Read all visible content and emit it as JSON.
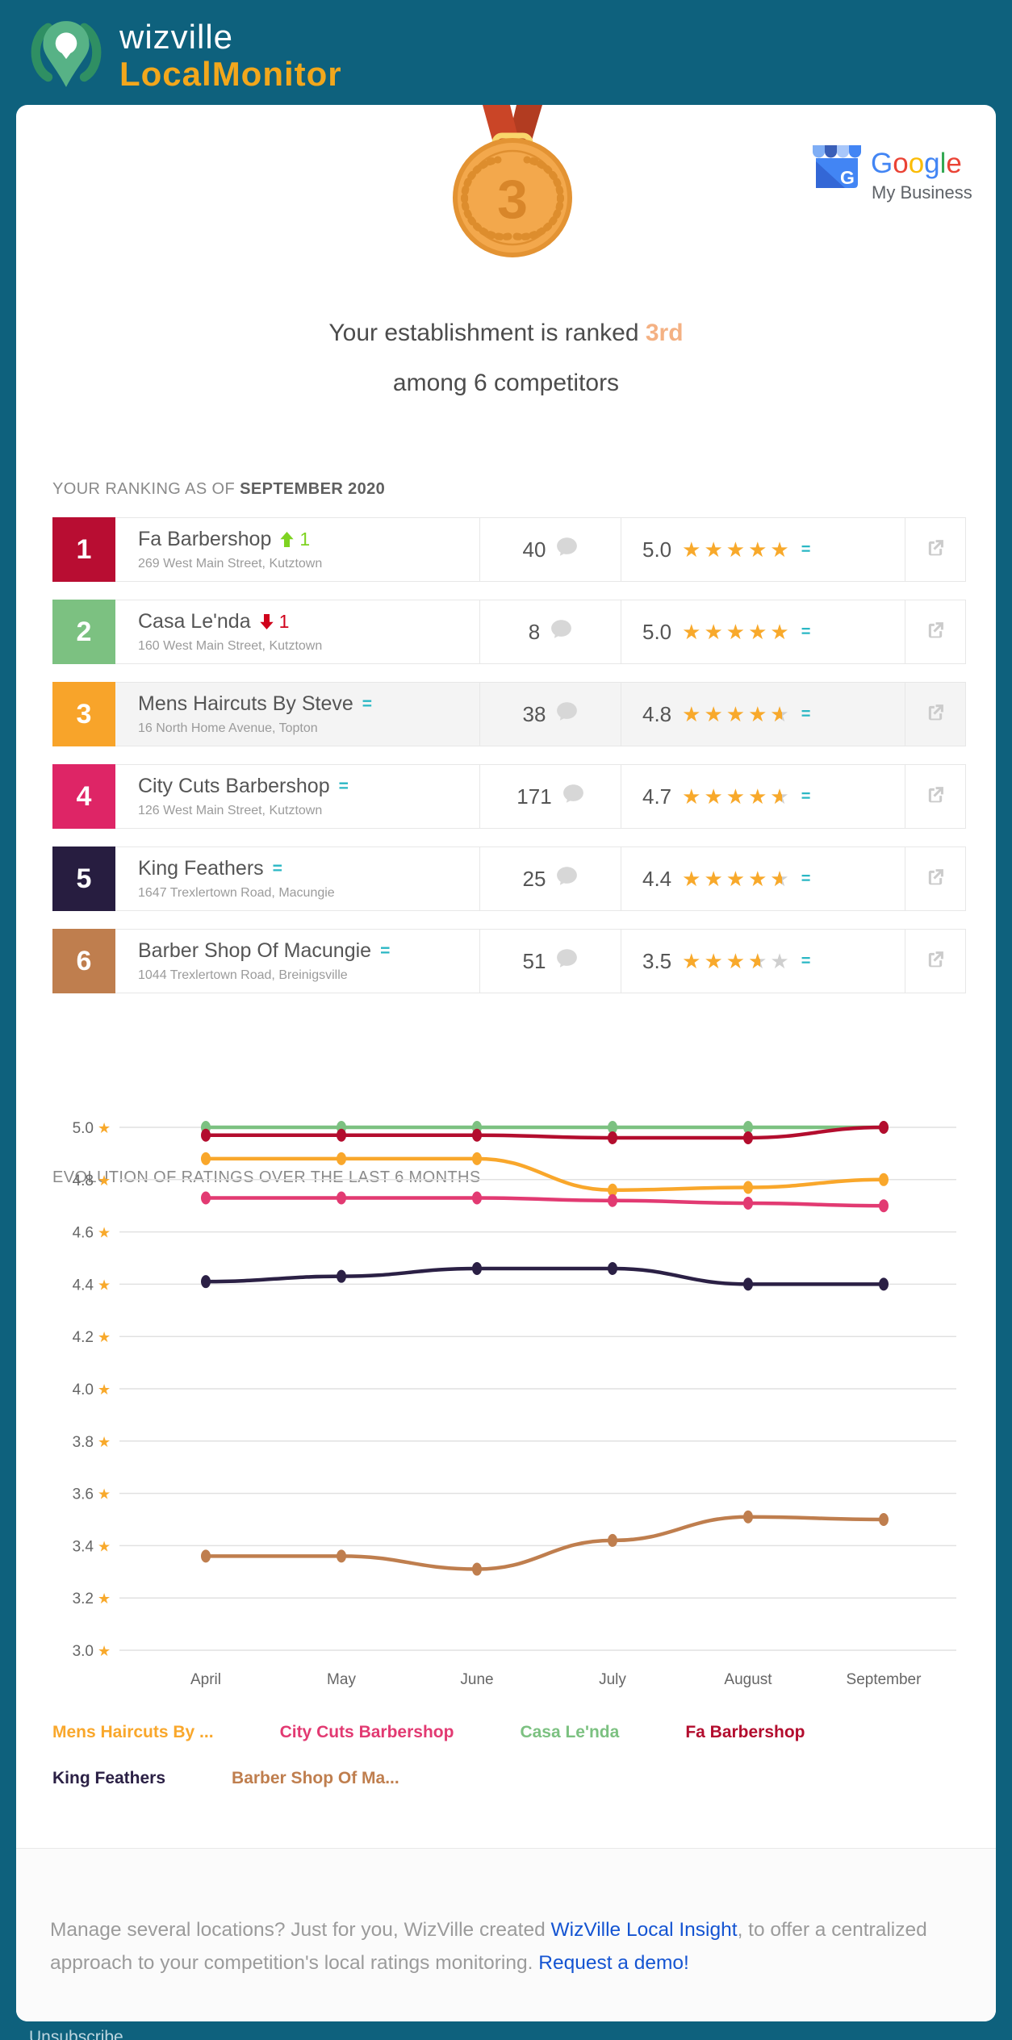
{
  "header": {
    "brand_line1": "wizville",
    "brand_line2": "LocalMonitor"
  },
  "google": {
    "name": "Google",
    "letters": [
      [
        "G",
        "#4285F4"
      ],
      [
        "o",
        "#EA4335"
      ],
      [
        "o",
        "#FBBC05"
      ],
      [
        "g",
        "#4285F4"
      ],
      [
        "l",
        "#34A853"
      ],
      [
        "e",
        "#EA4335"
      ]
    ],
    "subtitle": "My Business"
  },
  "hero": {
    "medal_number": "3",
    "headline_prefix": "Your establishment is ranked ",
    "headline_rank": "3rd",
    "headline_line2": "among 6 competitors"
  },
  "ranking": {
    "title_prefix": "YOUR RANKING AS OF ",
    "title_period": "SEPTEMBER 2020",
    "rows": [
      {
        "rank": "1",
        "badge_color": "#b80d32",
        "name": "Fa Barbershop",
        "trend": "up",
        "trend_value": "1",
        "address": "269 West Main Street, Kutztown",
        "reviews": "40",
        "rating": "5.0",
        "stars_display": 5,
        "highlighted": false
      },
      {
        "rank": "2",
        "badge_color": "#7cc181",
        "name": "Casa Le'nda",
        "trend": "down",
        "trend_value": "1",
        "address": "160 West Main Street, Kutztown",
        "reviews": "8",
        "rating": "5.0",
        "stars_display": 5,
        "highlighted": false
      },
      {
        "rank": "3",
        "badge_color": "#f8a42a",
        "name": "Mens Haircuts By Steve",
        "trend": "same",
        "trend_value": "",
        "address": "16 North Home Avenue, Topton",
        "reviews": "38",
        "rating": "4.8",
        "stars_display": 4.5,
        "highlighted": true
      },
      {
        "rank": "4",
        "badge_color": "#de2566",
        "name": "City Cuts Barbershop",
        "trend": "same",
        "trend_value": "",
        "address": "126 West Main Street, Kutztown",
        "reviews": "171",
        "rating": "4.7",
        "stars_display": 4.5,
        "highlighted": false
      },
      {
        "rank": "5",
        "badge_color": "#271d40",
        "name": "King Feathers",
        "trend": "same",
        "trend_value": "",
        "address": "1647 Trexlertown Road, Macungie",
        "reviews": "25",
        "rating": "4.4",
        "stars_display": 4.5,
        "highlighted": false
      },
      {
        "rank": "6",
        "badge_color": "#bf7e4e",
        "name": "Barber Shop Of Macungie",
        "trend": "same",
        "trend_value": "",
        "address": "1044 Trexlertown Road, Breinigsville",
        "reviews": "51",
        "rating": "3.5",
        "stars_display": 3.5,
        "highlighted": false
      }
    ]
  },
  "chart": {
    "title": "EVOLUTION OF RATINGS OVER THE LAST 6 MONTHS"
  },
  "chart_data": {
    "type": "line",
    "x": [
      "April",
      "May",
      "June",
      "July",
      "August",
      "September"
    ],
    "ylim": [
      3.0,
      5.0
    ],
    "ytick_step": 0.2,
    "yticks": [
      "5.0",
      "4.8",
      "4.6",
      "4.4",
      "4.2",
      "4.0",
      "3.8",
      "3.6",
      "3.4",
      "3.2",
      "3.0"
    ],
    "grid": true,
    "series": [
      {
        "name": "Casa Le'nda",
        "color": "#7cc181",
        "values": [
          5.0,
          5.0,
          5.0,
          5.0,
          5.0,
          5.0
        ]
      },
      {
        "name": "Fa Barbershop",
        "color": "#b30d2e",
        "values": [
          4.97,
          4.97,
          4.97,
          4.96,
          4.96,
          5.0
        ]
      },
      {
        "name": "Mens Haircuts By ...",
        "color": "#f9a72b",
        "values": [
          4.88,
          4.88,
          4.88,
          4.76,
          4.77,
          4.8
        ]
      },
      {
        "name": "City Cuts Barbershop",
        "color": "#e23a72",
        "values": [
          4.73,
          4.73,
          4.73,
          4.72,
          4.71,
          4.7
        ]
      },
      {
        "name": "King Feathers",
        "color": "#2b2045",
        "values": [
          4.41,
          4.43,
          4.46,
          4.46,
          4.4,
          4.4
        ]
      },
      {
        "name": "Barber Shop Of Ma...",
        "color": "#bf7e4e",
        "values": [
          3.36,
          3.36,
          3.31,
          3.42,
          3.51,
          3.5
        ]
      }
    ],
    "legend_position": "bottom",
    "legend_rows": [
      [
        {
          "label": "Mens Haircuts By ...",
          "color": "#f9a72b"
        },
        {
          "label": "City Cuts Barbershop",
          "color": "#e23a72"
        },
        {
          "label": "Casa Le'nda",
          "color": "#7cc181"
        },
        {
          "label": "Fa Barbershop",
          "color": "#b30d2e"
        }
      ],
      [
        {
          "label": "King Feathers",
          "color": "#2b2045"
        },
        {
          "label": "Barber Shop Of Ma...",
          "color": "#bf7e4e"
        }
      ]
    ]
  },
  "footer": {
    "segments": [
      {
        "text": "Manage several locations? Just for you, WizVille created ",
        "link": false
      },
      {
        "text": "WizVille Local Insight",
        "link": true
      },
      {
        "text": ", to offer a centralized approach to your competition's local ratings monitoring. ",
        "link": false
      },
      {
        "text": "Request a demo!",
        "link": true
      }
    ]
  },
  "bottom_bar": {
    "unsubscribe": "Unsubscribe"
  },
  "icons": {
    "equals": "=",
    "star": "★"
  },
  "colors": {
    "page_background": "#0e617d",
    "star_orange": "#f8a92b",
    "star_empty": "#cfcfcf",
    "equals_teal": "#2ab7c4",
    "trend_up_green": "#7ed321",
    "trend_down_red": "#d0021b",
    "link_blue": "#1454d2",
    "rank_peach": "#f4b183"
  }
}
